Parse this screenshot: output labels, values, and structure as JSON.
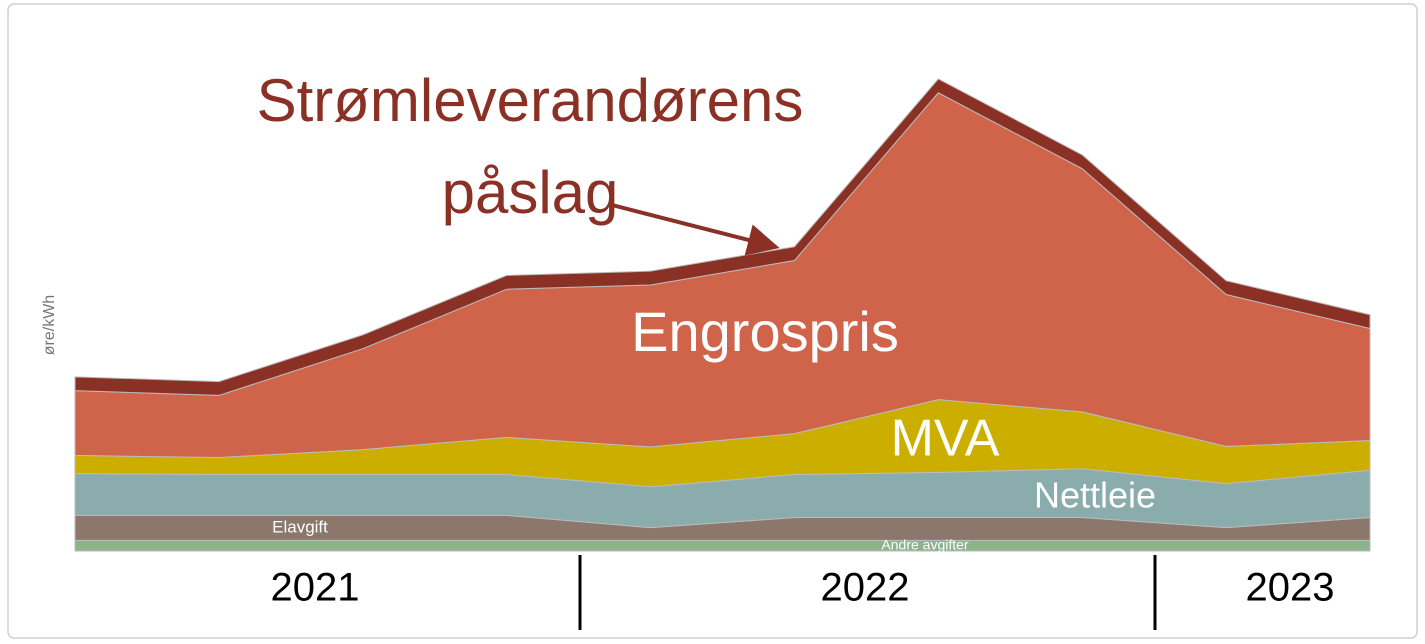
{
  "chart_data": {
    "type": "stacked_area",
    "y_label": "øre/kWh",
    "categories": [
      null,
      null,
      null,
      null,
      null,
      null,
      null,
      null,
      null,
      null
    ],
    "year_labels": [
      "2021",
      "2022",
      "2023"
    ],
    "ylim": [
      0,
      100
    ],
    "series": [
      {
        "name": "Andre avgifter",
        "color": "#8db38a",
        "values": [
          2,
          2,
          2,
          2,
          2,
          2,
          2,
          2,
          2,
          2
        ]
      },
      {
        "name": "Elavgift",
        "color": "#8b776c",
        "values": [
          4.7,
          4.7,
          4.7,
          4.7,
          2.4,
          4.3,
          4.3,
          4.3,
          2.4,
          4.3
        ]
      },
      {
        "name": "Nettleie",
        "color": "#8aacac",
        "values": [
          7.9,
          7.7,
          7.7,
          7.7,
          7.7,
          8.1,
          8.5,
          9.2,
          8.3,
          8.9
        ]
      },
      {
        "name": "MVA",
        "color": "#ccae00",
        "values": [
          3.4,
          3.2,
          4.7,
          7,
          7.5,
          7.7,
          13.7,
          10.7,
          7,
          5.6
        ]
      },
      {
        "name": "Engrospris",
        "color": "#d0644a",
        "values": [
          12.2,
          11.7,
          19,
          27.9,
          30.5,
          32.6,
          57.8,
          45.8,
          28.6,
          21.1
        ]
      },
      {
        "name": "Strømleverandørens påslag",
        "color": "#8b3024",
        "values": [
          2.6,
          2.6,
          2.6,
          2.6,
          2.6,
          2.6,
          2.6,
          2.6,
          2.6,
          2.6
        ]
      }
    ]
  }
}
